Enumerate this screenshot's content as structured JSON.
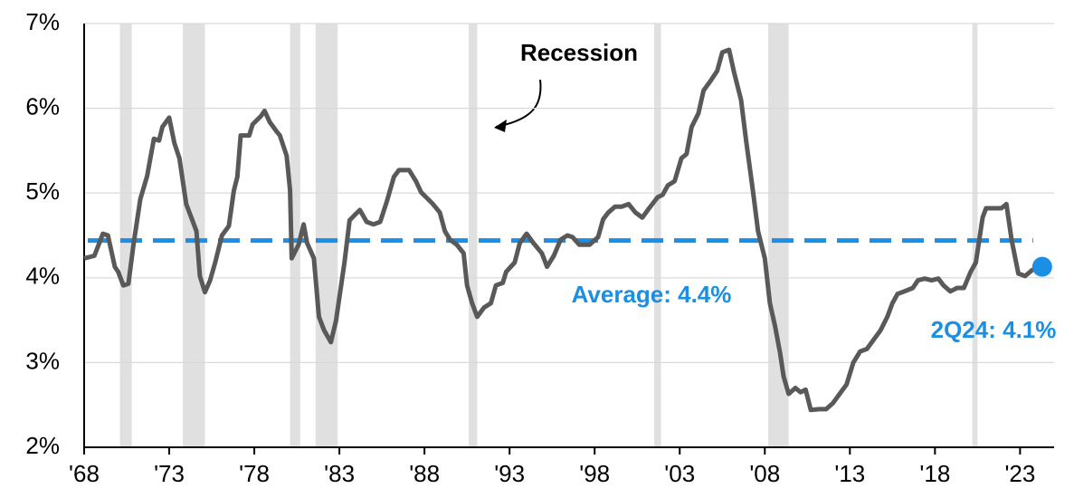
{
  "chart_data": {
    "type": "line",
    "annotation": "Recession",
    "average": 4.44,
    "average_label": "Average: 4.4%",
    "end_label": "2Q24: 4.1%",
    "color": "#595959",
    "average_color": "#1a8fe3",
    "recession_color": "#e0e0e0",
    "grid": true,
    "xlim": [
      1968,
      2025
    ],
    "ylim": [
      2,
      7
    ],
    "yticks": [
      {
        "value": 2,
        "label": "2%"
      },
      {
        "value": 3,
        "label": "3%"
      },
      {
        "value": 4,
        "label": "4%"
      },
      {
        "value": 5,
        "label": "5%"
      },
      {
        "value": 6,
        "label": "6%"
      },
      {
        "value": 7,
        "label": "7%"
      }
    ],
    "xticks": [
      {
        "value": 1968,
        "label": "'68"
      },
      {
        "value": 1973,
        "label": "'73"
      },
      {
        "value": 1978,
        "label": "'78"
      },
      {
        "value": 1983,
        "label": "'83"
      },
      {
        "value": 1988,
        "label": "'88"
      },
      {
        "value": 1993,
        "label": "'93"
      },
      {
        "value": 1998,
        "label": "'98"
      },
      {
        "value": 2003,
        "label": "'03"
      },
      {
        "value": 2008,
        "label": "'08"
      },
      {
        "value": 2013,
        "label": "'13"
      },
      {
        "value": 2018,
        "label": "'18"
      },
      {
        "value": 2023,
        "label": "'23"
      }
    ],
    "recessions": [
      [
        1970.1,
        1970.8
      ],
      [
        1973.8,
        1975.1
      ],
      [
        1980.1,
        1980.7
      ],
      [
        1981.6,
        1982.9
      ],
      [
        1990.6,
        1991.1
      ],
      [
        2001.5,
        2001.9
      ],
      [
        2008.2,
        2009.4
      ],
      [
        2020.2,
        2020.5
      ]
    ],
    "x": [
      1968.0,
      1968.6,
      1969.1,
      1969.4,
      1969.8,
      1970.0,
      1970.3,
      1970.6,
      1970.9,
      1971.3,
      1971.7,
      1972.1,
      1972.4,
      1972.6,
      1973.0,
      1973.3,
      1973.6,
      1974.0,
      1974.3,
      1974.6,
      1974.8,
      1975.1,
      1975.4,
      1975.7,
      1976.1,
      1976.5,
      1976.8,
      1977.0,
      1977.2,
      1977.7,
      1977.9,
      1978.4,
      1978.6,
      1978.9,
      1979.3,
      1979.5,
      1979.9,
      1980.1,
      1980.2,
      1980.6,
      1980.9,
      1981.1,
      1981.5,
      1981.8,
      1982.1,
      1982.5,
      1982.8,
      1983.3,
      1983.6,
      1983.9,
      1984.2,
      1984.6,
      1985.0,
      1985.4,
      1985.8,
      1986.2,
      1986.5,
      1987.1,
      1987.5,
      1987.8,
      1988.1,
      1988.5,
      1988.9,
      1989.2,
      1989.5,
      1989.9,
      1990.3,
      1990.5,
      1990.8,
      1991.1,
      1991.5,
      1991.9,
      1992.2,
      1992.6,
      1992.8,
      1993.3,
      1993.6,
      1994.0,
      1994.4,
      1994.9,
      1995.2,
      1995.6,
      1996.0,
      1996.4,
      1996.7,
      1997.1,
      1997.7,
      1998.2,
      1998.5,
      1998.8,
      1999.2,
      1999.6,
      2000.0,
      2000.4,
      2000.8,
      2001.2,
      2001.7,
      2002.0,
      2002.3,
      2002.7,
      2003.1,
      2003.4,
      2003.7,
      2004.1,
      2004.4,
      2004.8,
      2005.2,
      2005.5,
      2005.9,
      2006.2,
      2006.6,
      2006.9,
      2007.3,
      2007.6,
      2008.0,
      2008.3,
      2008.6,
      2008.9,
      2009.1,
      2009.4,
      2009.8,
      2010.1,
      2010.4,
      2010.7,
      2011.2,
      2011.6,
      2012.0,
      2012.4,
      2012.8,
      2013.2,
      2013.6,
      2014.0,
      2014.4,
      2014.8,
      2015.2,
      2015.5,
      2015.8,
      2016.2,
      2016.7,
      2017.0,
      2017.4,
      2017.8,
      2018.2,
      2018.5,
      2018.9,
      2019.3,
      2019.7,
      2020.1,
      2020.4,
      2020.8,
      2021.0,
      2021.5,
      2021.9,
      2022.2,
      2022.5,
      2022.9,
      2023.3,
      2023.7,
      2024.3
    ],
    "values": [
      4.23,
      4.26,
      4.52,
      4.5,
      4.13,
      4.07,
      3.91,
      3.93,
      4.39,
      4.93,
      5.2,
      5.64,
      5.62,
      5.78,
      5.89,
      5.59,
      5.41,
      4.87,
      4.71,
      4.55,
      4.02,
      3.83,
      3.97,
      4.18,
      4.5,
      4.61,
      5.03,
      5.19,
      5.68,
      5.68,
      5.81,
      5.91,
      5.97,
      5.84,
      5.73,
      5.68,
      5.44,
      5.03,
      4.23,
      4.39,
      4.63,
      4.41,
      4.23,
      3.54,
      3.38,
      3.24,
      3.49,
      4.18,
      4.68,
      4.74,
      4.8,
      4.66,
      4.63,
      4.66,
      4.91,
      5.19,
      5.27,
      5.27,
      5.14,
      5.01,
      4.95,
      4.87,
      4.77,
      4.55,
      4.45,
      4.39,
      4.29,
      3.91,
      3.7,
      3.54,
      3.65,
      3.7,
      3.91,
      3.94,
      4.07,
      4.18,
      4.41,
      4.52,
      4.41,
      4.29,
      4.13,
      4.26,
      4.45,
      4.5,
      4.48,
      4.39,
      4.39,
      4.48,
      4.69,
      4.77,
      4.84,
      4.84,
      4.87,
      4.77,
      4.71,
      4.82,
      4.95,
      4.98,
      5.09,
      5.14,
      5.41,
      5.46,
      5.78,
      5.94,
      6.21,
      6.32,
      6.44,
      6.66,
      6.69,
      6.42,
      6.1,
      5.62,
      5.03,
      4.55,
      4.23,
      3.7,
      3.43,
      3.11,
      2.84,
      2.63,
      2.7,
      2.65,
      2.68,
      2.44,
      2.45,
      2.45,
      2.52,
      2.63,
      2.74,
      3.0,
      3.13,
      3.16,
      3.27,
      3.38,
      3.54,
      3.7,
      3.81,
      3.84,
      3.88,
      3.97,
      3.99,
      3.97,
      3.99,
      3.91,
      3.84,
      3.88,
      3.88,
      4.07,
      4.18,
      4.71,
      4.82,
      4.82,
      4.82,
      4.87,
      4.45,
      4.05,
      4.02,
      4.09,
      4.13
    ]
  }
}
